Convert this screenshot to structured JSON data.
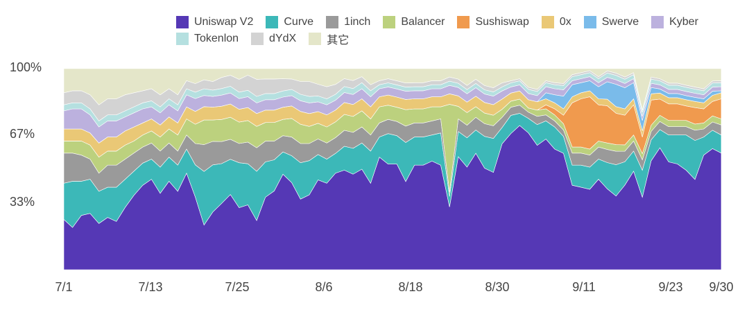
{
  "chart_data": {
    "type": "area",
    "stacked": true,
    "normalized_percent": true,
    "x_ticks": [
      "7/1",
      "7/13",
      "7/25",
      "8/6",
      "8/18",
      "8/30",
      "9/11",
      "9/23",
      "9/30"
    ],
    "y_ticks": [
      "100%",
      "67%",
      "33%"
    ],
    "legend_placement": "top-right",
    "grid": false,
    "series": [
      {
        "name": "Uniswap V2",
        "color": "#5538b5",
        "values": [
          25,
          21,
          27,
          28,
          23,
          26,
          24,
          31,
          37,
          42,
          45,
          38,
          44,
          39,
          48,
          34,
          20,
          27,
          30,
          34,
          29,
          30,
          23,
          35,
          38,
          47,
          42,
          33,
          35,
          46,
          43,
          49,
          50,
          48,
          50,
          43,
          56,
          52,
          52,
          43,
          52,
          52,
          54,
          52,
          30,
          54,
          49,
          55,
          48,
          46,
          62,
          67,
          71,
          66,
          60,
          65,
          60,
          55,
          42,
          41,
          40,
          45,
          37,
          33,
          40,
          49,
          35,
          52,
          60,
          52,
          51,
          48,
          44,
          57,
          59,
          58
        ]
      },
      {
        "name": "Curve",
        "color": "#3cb8b8",
        "values": [
          18,
          23,
          17,
          17,
          16,
          15,
          17,
          14,
          12,
          11,
          10,
          13,
          12,
          13,
          12,
          15,
          24,
          22,
          18,
          16,
          21,
          19,
          23,
          17,
          15,
          11,
          13,
          17,
          16,
          13,
          12,
          10,
          12,
          13,
          13,
          16,
          10,
          15,
          14,
          19,
          14,
          14,
          13,
          16,
          5,
          12,
          14,
          11,
          15,
          16,
          8,
          9,
          6,
          7,
          10,
          9,
          11,
          8,
          10,
          11,
          11,
          10,
          12,
          14,
          11,
          10,
          13,
          10,
          9,
          13,
          14,
          17,
          19,
          9,
          9,
          9
        ]
      },
      {
        "name": "1inch",
        "color": "#9a9a9a",
        "values": [
          15,
          14,
          13,
          10,
          9,
          11,
          11,
          10,
          9,
          8,
          8,
          8,
          7,
          7,
          7,
          10,
          12,
          11,
          10,
          9,
          9,
          10,
          11,
          10,
          9,
          8,
          9,
          9,
          8,
          8,
          8,
          8,
          8,
          8,
          8,
          8,
          7,
          7,
          7,
          8,
          7,
          7,
          7,
          7,
          2,
          6,
          6,
          6,
          6,
          6,
          5,
          4,
          4,
          3,
          4,
          3,
          3,
          3,
          6,
          6,
          6,
          6,
          6,
          6,
          5,
          5,
          5,
          4,
          4,
          4,
          4,
          4,
          5,
          4,
          4,
          5
        ]
      },
      {
        "name": "Balancer",
        "color": "#bcd17e",
        "values": [
          6,
          6,
          7,
          7,
          8,
          7,
          7,
          7,
          6,
          6,
          6,
          7,
          7,
          8,
          8,
          9,
          11,
          10,
          10,
          10,
          10,
          10,
          10,
          9,
          9,
          8,
          9,
          9,
          8,
          8,
          8,
          8,
          8,
          8,
          8,
          8,
          8,
          7,
          7,
          8,
          7,
          7,
          7,
          6,
          42,
          6,
          6,
          5,
          5,
          5,
          4,
          3,
          3,
          2,
          3,
          3,
          3,
          3,
          3,
          3,
          3,
          3,
          3,
          3,
          3,
          3,
          3,
          3,
          3,
          3,
          3,
          3,
          3,
          3,
          3,
          3
        ]
      },
      {
        "name": "Sushiswap",
        "color": "#f09a4e",
        "values": [
          0,
          0,
          0,
          0,
          0,
          0,
          0,
          0,
          0,
          0,
          0,
          0,
          0,
          0,
          0,
          0,
          0,
          0,
          0,
          0,
          0,
          0,
          0,
          0,
          0,
          0,
          0,
          0,
          0,
          0,
          0,
          0,
          0,
          0,
          0,
          0,
          0,
          0,
          0,
          0,
          0,
          0,
          0,
          0,
          0,
          0,
          0,
          0,
          0,
          0,
          0,
          0,
          0,
          0,
          0,
          2,
          3,
          4,
          22,
          24,
          26,
          18,
          17,
          14,
          14,
          15,
          8,
          12,
          8,
          8,
          8,
          7,
          8,
          7,
          7,
          10
        ]
      },
      {
        "name": "0x",
        "color": "#eac876",
        "values": [
          6,
          6,
          6,
          6,
          7,
          7,
          7,
          7,
          7,
          6,
          6,
          6,
          6,
          6,
          6,
          6,
          6,
          6,
          6,
          6,
          6,
          6,
          6,
          6,
          6,
          6,
          6,
          6,
          6,
          6,
          6,
          6,
          6,
          6,
          6,
          6,
          5,
          5,
          5,
          5,
          5,
          5,
          5,
          5,
          5,
          5,
          5,
          5,
          5,
          5,
          5,
          4,
          4,
          4,
          4,
          3,
          3,
          3,
          3,
          3,
          3,
          3,
          3,
          3,
          3,
          3,
          3,
          3,
          3,
          3,
          3,
          3,
          3,
          3,
          3,
          3
        ]
      },
      {
        "name": "Swerve",
        "color": "#7abbea",
        "values": [
          0,
          0,
          0,
          0,
          0,
          0,
          0,
          0,
          0,
          0,
          0,
          0,
          0,
          0,
          0,
          0,
          0,
          0,
          0,
          0,
          0,
          0,
          0,
          0,
          0,
          0,
          0,
          0,
          0,
          0,
          0,
          0,
          0,
          0,
          0,
          0,
          0,
          0,
          0,
          0,
          0,
          0,
          0,
          0,
          0,
          0,
          0,
          0,
          0,
          0,
          0,
          0,
          0,
          0,
          0,
          3,
          4,
          6,
          6,
          5,
          5,
          6,
          8,
          10,
          10,
          8,
          5,
          3,
          2,
          2,
          2,
          2,
          2,
          2,
          2,
          1
        ]
      },
      {
        "name": "Kyber",
        "color": "#bcb1de",
        "values": [
          9,
          10,
          10,
          9,
          8,
          8,
          8,
          7,
          7,
          7,
          6,
          6,
          6,
          6,
          6,
          6,
          5,
          5,
          5,
          5,
          5,
          5,
          5,
          5,
          5,
          5,
          5,
          5,
          5,
          5,
          5,
          5,
          5,
          5,
          5,
          5,
          4,
          4,
          4,
          4,
          4,
          4,
          4,
          4,
          4,
          4,
          4,
          4,
          4,
          4,
          4,
          3,
          3,
          3,
          3,
          3,
          3,
          3,
          2,
          2,
          2,
          2,
          2,
          2,
          2,
          2,
          2,
          2,
          2,
          2,
          2,
          2,
          2,
          2,
          2,
          2
        ]
      },
      {
        "name": "Tokenlon",
        "color": "#b5e0e0",
        "values": [
          3,
          3,
          3,
          3,
          3,
          3,
          3,
          3,
          3,
          3,
          3,
          3,
          3,
          3,
          3,
          3,
          3,
          3,
          3,
          3,
          3,
          3,
          3,
          3,
          3,
          3,
          3,
          3,
          3,
          3,
          3,
          3,
          3,
          3,
          3,
          3,
          2,
          2,
          2,
          2,
          2,
          2,
          2,
          2,
          2,
          2,
          2,
          2,
          2,
          2,
          2,
          2,
          2,
          2,
          2,
          2,
          2,
          2,
          2,
          2,
          2,
          2,
          2,
          2,
          2,
          2,
          2,
          2,
          2,
          2,
          2,
          2,
          2,
          2,
          2,
          2
        ]
      },
      {
        "name": "dYdX",
        "color": "#d3d3d3",
        "values": [
          6,
          6,
          6,
          7,
          8,
          8,
          8,
          8,
          7,
          6,
          6,
          6,
          5,
          5,
          4,
          4,
          4,
          4,
          5,
          5,
          6,
          7,
          8,
          7,
          7,
          6,
          5,
          6,
          7,
          6,
          6,
          5,
          4,
          4,
          3,
          3,
          2,
          2,
          2,
          2,
          2,
          2,
          2,
          2,
          2,
          2,
          2,
          2,
          2,
          2,
          2,
          1,
          1,
          1,
          1,
          1,
          1,
          1,
          1,
          1,
          1,
          1,
          1,
          1,
          1,
          1,
          1,
          1,
          1,
          1,
          1,
          1,
          1,
          1,
          1,
          1
        ]
      },
      {
        "name": "其它",
        "color": "#e4e6c9",
        "values": [
          12,
          11,
          11,
          13,
          18,
          15,
          15,
          13,
          12,
          11,
          10,
          13,
          10,
          13,
          6,
          7,
          5,
          6,
          4,
          3,
          5,
          3,
          5,
          5,
          5,
          5,
          5,
          6,
          6,
          8,
          9,
          8,
          5,
          6,
          4,
          8,
          6,
          5,
          6,
          7,
          7,
          7,
          6,
          6,
          4,
          5,
          8,
          5,
          8,
          9,
          7,
          6,
          5,
          9,
          10,
          6,
          7,
          7,
          3,
          2,
          1,
          4,
          1,
          2,
          4,
          2,
          20,
          4,
          5,
          7,
          7,
          8,
          9,
          10,
          6,
          6
        ]
      }
    ]
  }
}
